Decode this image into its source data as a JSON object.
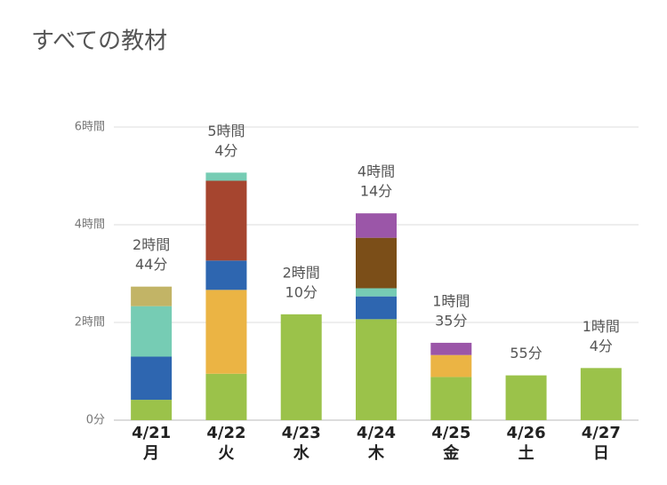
{
  "chart_data": {
    "type": "stacked_bar",
    "title": "すべての教材",
    "categories": [
      "4/21",
      "4/22",
      "4/23",
      "4/24",
      "4/25",
      "4/26",
      "4/27"
    ],
    "category_sublabels": [
      "月",
      "火",
      "水",
      "木",
      "金",
      "土",
      "日"
    ],
    "series": [
      {
        "color": "#9bc24a",
        "values": [
          25,
          57,
          130,
          124,
          53,
          55,
          64
        ]
      },
      {
        "color": "#ebb444",
        "values": [
          null,
          103,
          null,
          null,
          27,
          null,
          null
        ]
      },
      {
        "color": "#2e66b0",
        "values": [
          53,
          36,
          null,
          28,
          null,
          null,
          null
        ]
      },
      {
        "color": "#a6452f",
        "values": [
          null,
          98,
          null,
          null,
          null,
          null,
          null
        ]
      },
      {
        "color": "#76ccb4",
        "values": [
          62,
          10,
          null,
          10,
          null,
          null,
          null
        ]
      },
      {
        "color": "#c2b466",
        "values": [
          24,
          null,
          null,
          null,
          null,
          null,
          null
        ]
      },
      {
        "color": "#7b4e18",
        "values": [
          null,
          null,
          null,
          62,
          null,
          null,
          null
        ]
      },
      {
        "color": "#9b56a8",
        "values": [
          null,
          null,
          null,
          30,
          15,
          null,
          null
        ]
      }
    ],
    "totals": [
      164,
      304,
      130,
      254,
      95,
      55,
      64
    ],
    "value_labels": [
      [
        "2時間",
        "44分"
      ],
      [
        "5時間",
        "4分"
      ],
      [
        "2時間",
        "10分"
      ],
      [
        "4時間",
        "14分"
      ],
      [
        "1時間",
        "35分"
      ],
      [
        "55分"
      ],
      [
        "1時間",
        "4分"
      ]
    ],
    "ylim": [
      0,
      360
    ],
    "yticks": [
      {
        "value": 0,
        "label": "0分"
      },
      {
        "value": 120,
        "label": "2時間"
      },
      {
        "value": 240,
        "label": "4時間"
      },
      {
        "value": 360,
        "label": "6時間"
      }
    ],
    "grid": true
  }
}
